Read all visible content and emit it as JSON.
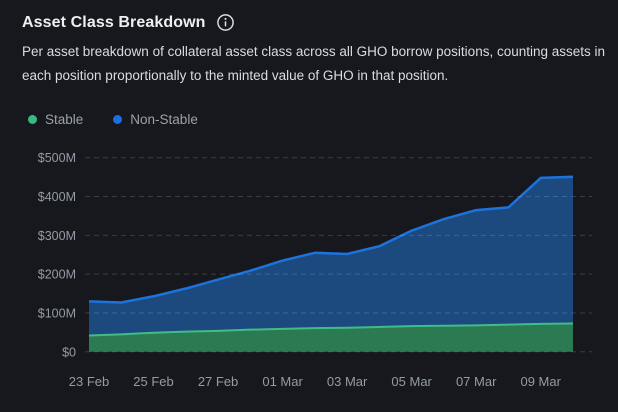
{
  "header": {
    "title": "Asset Class Breakdown",
    "description": "Per asset breakdown of collateral asset class across all GHO borrow positions, counting assets in each position proportionally to the minted value of GHO in that position."
  },
  "legend": [
    {
      "label": "Stable",
      "color": "#38b981"
    },
    {
      "label": "Non-Stable",
      "color": "#1d6de0"
    }
  ],
  "chart_data": {
    "type": "area",
    "stacked": true,
    "num_points": 16,
    "x_tick_labels": [
      "23 Feb",
      "25 Feb",
      "27 Feb",
      "01 Mar",
      "03 Mar",
      "05 Mar",
      "07 Mar",
      "09 Mar"
    ],
    "points_per_tick": 2,
    "y_tick_labels": [
      "$0",
      "$100M",
      "$200M",
      "$300M",
      "$400M",
      "$500M"
    ],
    "ylim": [
      0,
      500
    ],
    "unit": "$M",
    "grid": "dashed-horizontal",
    "legend_position": "top-left",
    "series": [
      {
        "name": "Stable",
        "fill": "#2c7a52",
        "line": "#40bd87",
        "values": [
          42,
          45,
          49,
          52,
          54,
          57,
          59,
          61,
          62,
          64,
          66,
          67,
          68,
          70,
          72,
          73
        ]
      },
      {
        "name": "Non-Stable",
        "fill": "#1c4a7e",
        "line": "#1c73dd",
        "values": [
          88,
          82,
          94,
          111,
          132,
          152,
          176,
          194,
          190,
          208,
          246,
          275,
          297,
          302,
          376,
          378
        ]
      }
    ],
    "totals": [
      130,
      127,
      143,
      163,
      186,
      209,
      235,
      255,
      252,
      272,
      312,
      342,
      365,
      372,
      448,
      451
    ]
  }
}
